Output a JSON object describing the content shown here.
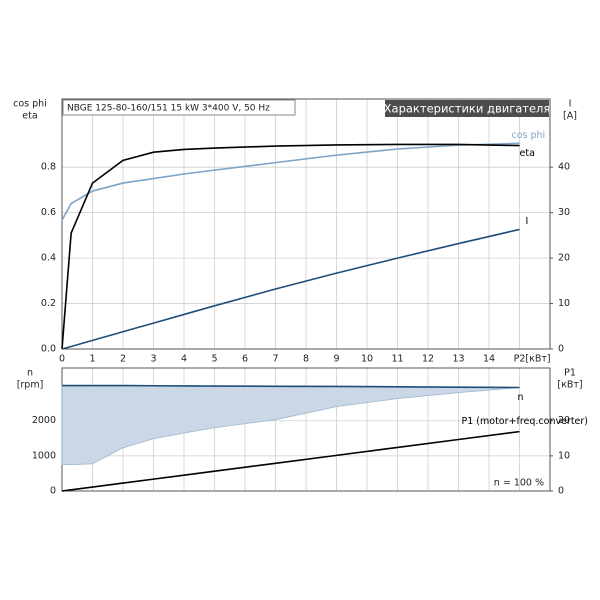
{
  "chart_data": [
    {
      "type": "line",
      "title": "Характеристики двигателя",
      "subtitle": "NBGE 125-80-160/151   15 kW   3*400 V, 50 Hz",
      "ylabel": [
        "cos phi",
        "eta"
      ],
      "y2label": [
        "I",
        "[A]"
      ],
      "xlabel": "[кВт]",
      "x": [
        0,
        0.3,
        1,
        2,
        3,
        4,
        5,
        7,
        9,
        11,
        13,
        15
      ],
      "xlim": [
        0,
        16
      ],
      "xticks": [
        0,
        1,
        2,
        3,
        4,
        5,
        6,
        7,
        8,
        9,
        10,
        11,
        12,
        13,
        14,
        {
          "value": 15,
          "label": "P2"
        }
      ],
      "ylim": [
        0,
        1.1
      ],
      "yticks": [
        {
          "value": 0,
          "label": "0.0"
        },
        0.2,
        0.4,
        0.6,
        0.8
      ],
      "y2lim": [
        0,
        55
      ],
      "y2ticks": [
        0,
        10,
        20,
        30,
        40
      ],
      "grid": true,
      "series": [
        {
          "name": "cos phi",
          "color": "#7ea3c6",
          "values": [
            0.567,
            0.64,
            0.695,
            0.73,
            0.75,
            0.77,
            0.787,
            0.82,
            0.853,
            0.88,
            0.897,
            0.905
          ]
        },
        {
          "name": "eta",
          "color": "#000000",
          "values": [
            0,
            0.51,
            0.73,
            0.83,
            0.866,
            0.878,
            0.884,
            0.893,
            0.898,
            0.9,
            0.9,
            0.895
          ]
        },
        {
          "name": "I",
          "color": "#1f4e79",
          "axis": "y2",
          "values": [
            0,
            0.55,
            1.9,
            3.8,
            5.7,
            7.6,
            9.5,
            13.2,
            16.7,
            20.0,
            23.2,
            26.3
          ]
        }
      ]
    },
    {
      "type": "line",
      "ylabel": [
        "n",
        "[rpm]"
      ],
      "y2label": [
        "P1",
        "[кВт]"
      ],
      "annotation": "n = 100 %",
      "x": [
        0,
        0.3,
        1,
        2,
        3,
        4,
        5,
        7,
        9,
        11,
        13,
        15
      ],
      "xlim": [
        0,
        16
      ],
      "ylim": [
        0,
        3500
      ],
      "yticks": [
        0,
        1000,
        2000
      ],
      "y2lim": [
        0,
        35
      ],
      "y2ticks": [
        0,
        10,
        20
      ],
      "grid": true,
      "series": [
        {
          "name": "n",
          "color": "#1f4e79",
          "fill": "#c9d7e6",
          "values": [
            3000,
            3000,
            3000,
            3000,
            2995,
            2990,
            2985,
            2980,
            2975,
            2965,
            2955,
            2945
          ],
          "range_min": [
            743,
            750,
            771,
            1229,
            1486,
            1650,
            1800,
            2029,
            2400,
            2630,
            2800,
            2943
          ]
        },
        {
          "name": "P1 (motor+freq.converter)",
          "color": "#000000",
          "axis": "y2",
          "values": [
            0,
            0.34,
            1.13,
            2.25,
            3.38,
            4.51,
            5.63,
            7.89,
            10.14,
            12.4,
            14.65,
            16.9
          ]
        }
      ]
    }
  ]
}
